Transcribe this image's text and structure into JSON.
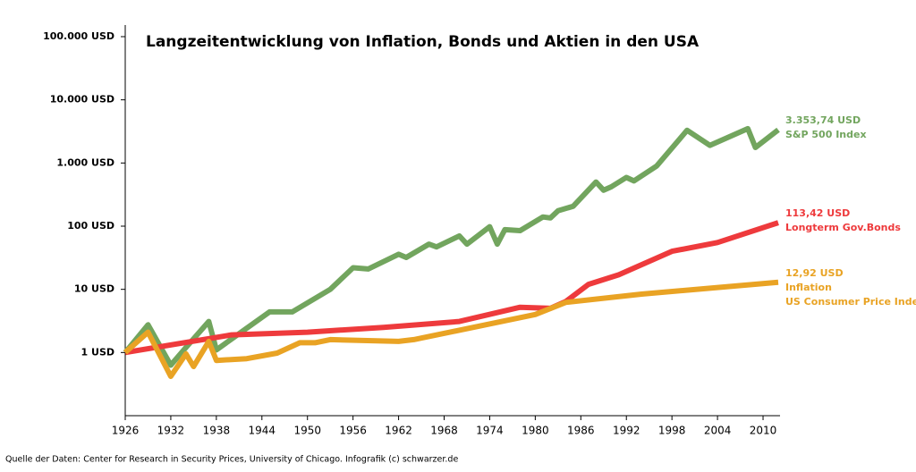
{
  "chart_data": {
    "type": "line",
    "title": "Langzeitentwicklung von Inflation, Bonds und Aktien in den USA",
    "source": "Quelle der Daten: Center for Research in Security Prices, University of Chicago. Infografik (c) schwarzer.de",
    "log_y": true,
    "grid": false,
    "xlim": [
      1926,
      2012
    ],
    "xticks": [
      1926,
      1932,
      1938,
      1944,
      1950,
      1956,
      1962,
      1968,
      1974,
      1980,
      1986,
      1992,
      1998,
      2004,
      2010
    ],
    "ylim": [
      0.1,
      100000
    ],
    "yticks": [
      {
        "value": 1,
        "label": "1 USD"
      },
      {
        "value": 10,
        "label": "10 USD"
      },
      {
        "value": 100,
        "label": "100 USD"
      },
      {
        "value": 1000,
        "label": "1.000 USD"
      },
      {
        "value": 10000,
        "label": "10.000 USD"
      },
      {
        "value": 100000,
        "label": "100.000 USD"
      }
    ],
    "series": [
      {
        "name": "S&P 500 Index",
        "color": "#72a55e",
        "x": [
          1926,
          1929,
          1932,
          1934,
          1937,
          1938,
          1945,
          1948,
          1953,
          1956,
          1958,
          1962,
          1963,
          1966,
          1967,
          1970,
          1971,
          1974,
          1975,
          1976,
          1978,
          1981,
          1982,
          1983,
          1985,
          1988,
          1989,
          1990,
          1992,
          1993,
          1996,
          2000,
          2003,
          2008,
          2009,
          2012
        ],
        "values": [
          1,
          2.75,
          0.63,
          1.2,
          3.1,
          1.1,
          4.4,
          4.4,
          10,
          22,
          21,
          36,
          32,
          52,
          47,
          70,
          52,
          98,
          52,
          88,
          85,
          140,
          135,
          175,
          207,
          500,
          370,
          420,
          590,
          520,
          900,
          3300,
          1900,
          3500,
          1760,
          3353.74
        ],
        "value_labels": [
          null,
          null,
          null,
          null,
          null,
          null,
          null,
          null,
          null,
          null,
          null,
          null,
          null,
          null,
          null,
          null,
          null,
          null,
          null,
          null,
          null,
          null,
          null,
          null,
          null,
          null,
          null,
          null,
          null,
          null,
          null,
          null,
          null,
          null,
          null,
          "3.353,74 USD"
        ]
      },
      {
        "name": "Longterm Gov.Bonds",
        "color": "#ee3a3c",
        "x": [
          1926,
          1940,
          1950,
          1960,
          1970,
          1978,
          1982,
          1984,
          1987,
          1991,
          1998,
          2004,
          2012
        ],
        "values": [
          1,
          1.9,
          2.1,
          2.5,
          3.1,
          5.2,
          5,
          6.4,
          12,
          17,
          40,
          55,
          113.42
        ],
        "value_labels": [
          null,
          null,
          null,
          null,
          null,
          null,
          null,
          null,
          null,
          null,
          null,
          null,
          "113,42 USD"
        ]
      },
      {
        "name": "Inflation",
        "description": "US Consumer Price Index",
        "color": "#e9a324",
        "x": [
          1926,
          1929,
          1932,
          1934,
          1935,
          1937,
          1938,
          1942,
          1946,
          1949,
          1951,
          1953,
          1962,
          1964,
          1980,
          1984,
          1994,
          2012
        ],
        "values": [
          1,
          2.1,
          0.42,
          0.95,
          0.6,
          1.5,
          0.75,
          0.8,
          0.98,
          1.43,
          1.43,
          1.6,
          1.5,
          1.6,
          4,
          6.2,
          8.4,
          12.92
        ],
        "value_labels": [
          null,
          null,
          null,
          null,
          null,
          null,
          null,
          null,
          null,
          null,
          null,
          null,
          null,
          null,
          null,
          null,
          null,
          "12,92 USD"
        ]
      }
    ]
  }
}
